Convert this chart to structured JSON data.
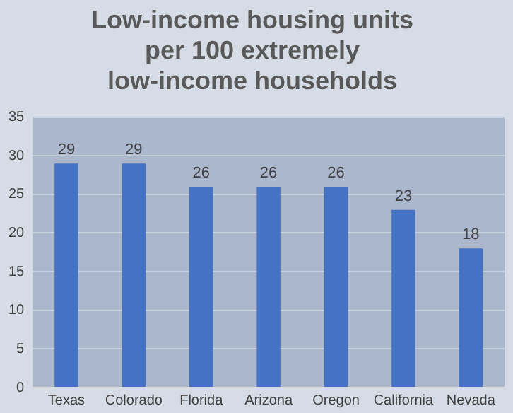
{
  "chart_data": {
    "type": "bar",
    "title": "Low-income housing units per 100 extremely low-income households",
    "categories": [
      "Texas",
      "Colorado",
      "Florida",
      "Arizona",
      "Oregon",
      "California",
      "Nevada"
    ],
    "values": [
      29,
      29,
      26,
      26,
      26,
      23,
      18
    ],
    "color": "#4472c4",
    "ylim": [
      0,
      35
    ],
    "yticks": [
      0,
      5,
      10,
      15,
      20,
      25,
      30,
      35
    ],
    "grid": "y",
    "data_labels": true,
    "legend": false
  }
}
